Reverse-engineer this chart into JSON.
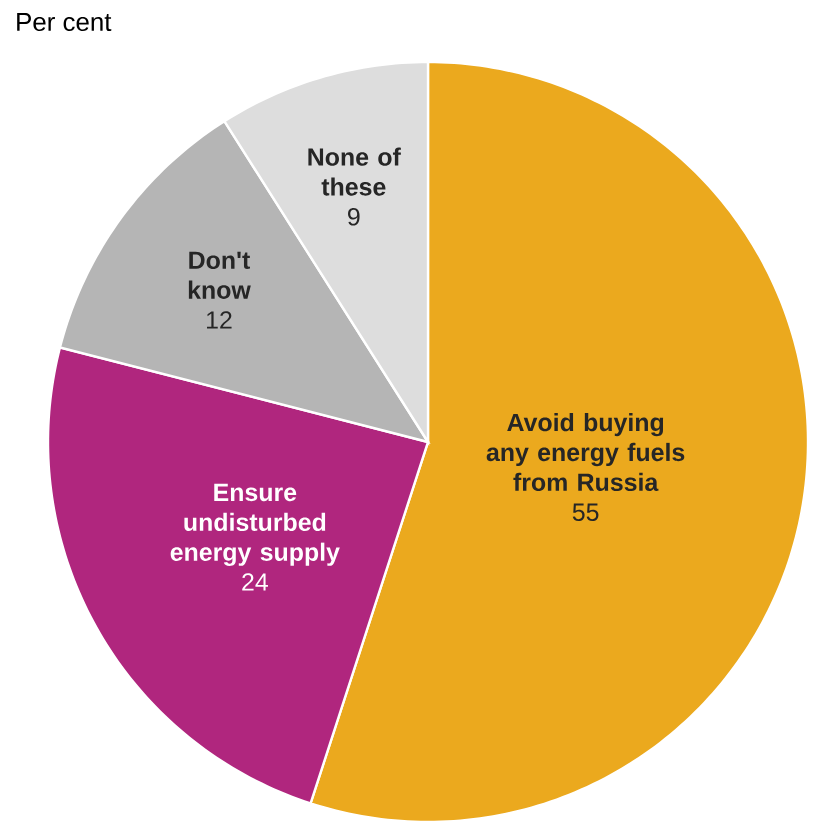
{
  "chart_data": {
    "type": "pie",
    "subtitle": "Per cent",
    "categories": [
      "Avoid buying any energy fuels from Russia",
      "Ensure undisturbed energy supply",
      "Don't know",
      "None of these"
    ],
    "values": [
      55,
      24,
      12,
      9
    ],
    "colors": [
      "#eba91e",
      "#b0267e",
      "#b5b5b5",
      "#dddddd"
    ],
    "data_labels": true
  }
}
